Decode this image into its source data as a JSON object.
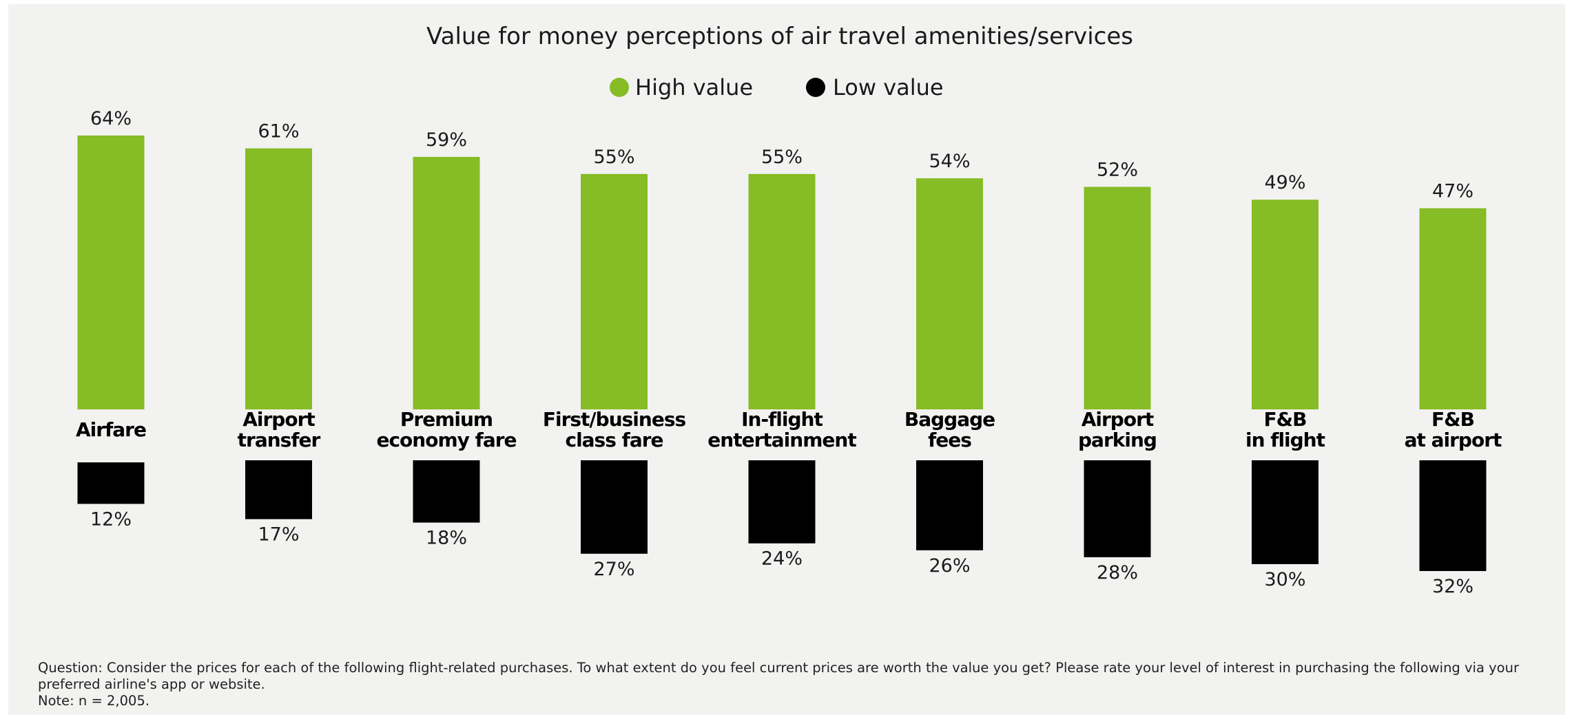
{
  "chart_data": {
    "type": "bar",
    "title": "Value for money perceptions of air travel amenities/services",
    "categories": [
      [
        "Airfare"
      ],
      [
        "Airport",
        "transfer"
      ],
      [
        "Premium",
        "economy fare"
      ],
      [
        "First/business",
        "class fare"
      ],
      [
        "In-flight",
        "entertainment"
      ],
      [
        "Baggage",
        "fees"
      ],
      [
        "Airport",
        "parking"
      ],
      [
        "F&B",
        "in flight"
      ],
      [
        "F&B",
        "at airport"
      ]
    ],
    "series": [
      {
        "name": "High value",
        "values": [
          64,
          61,
          59,
          55,
          55,
          54,
          52,
          49,
          47
        ],
        "color": "#86bc25",
        "direction": "up"
      },
      {
        "name": "Low value",
        "values": [
          12,
          17,
          18,
          27,
          24,
          26,
          28,
          30,
          32
        ],
        "color": "#000000",
        "direction": "down"
      }
    ],
    "value_suffix": "%",
    "legend_position": "top-center",
    "grid": false
  },
  "footnote": {
    "question": "Question: Consider the prices for each of the following flight-related purchases. To what extent do you feel current prices are worth the value you get? Please rate your level of interest in purchasing the following via your preferred airline's app or website.",
    "note": "Note: n = 2,005."
  }
}
